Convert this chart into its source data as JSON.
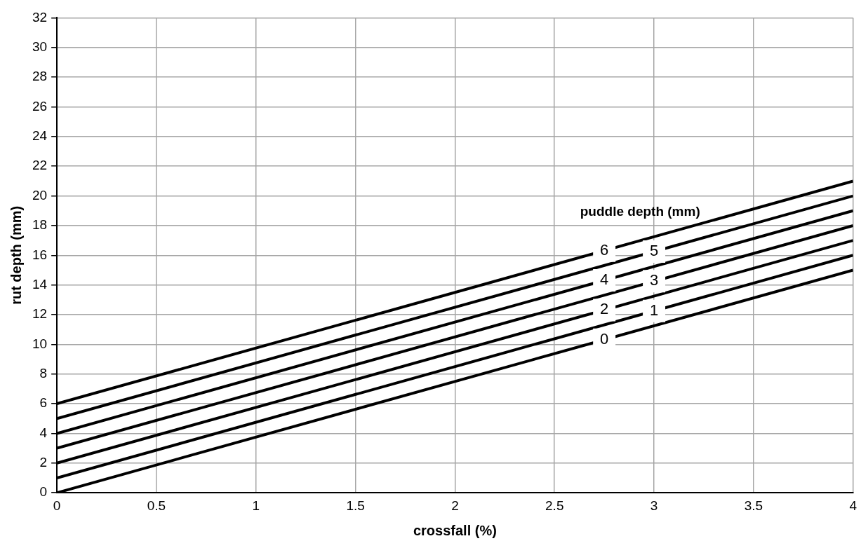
{
  "chart_data": {
    "type": "line",
    "xlabel": "crossfall (%)",
    "ylabel": "rut depth (mm)",
    "legend_title": "puddle depth (mm)",
    "x": [
      0,
      4
    ],
    "series": [
      {
        "name": "0",
        "color": "#000000",
        "values": [
          0,
          15
        ]
      },
      {
        "name": "1",
        "color": "#000000",
        "values": [
          1,
          16
        ]
      },
      {
        "name": "2",
        "color": "#000000",
        "values": [
          2,
          17
        ]
      },
      {
        "name": "3",
        "color": "#000000",
        "values": [
          3,
          18
        ]
      },
      {
        "name": "4",
        "color": "#000000",
        "values": [
          4,
          19
        ]
      },
      {
        "name": "5",
        "color": "#000000",
        "values": [
          5,
          20
        ]
      },
      {
        "name": "6",
        "color": "#000000",
        "values": [
          6,
          21
        ]
      }
    ],
    "xlim": [
      0,
      4
    ],
    "xticks": [
      0,
      0.5,
      1,
      1.5,
      2,
      2.5,
      3,
      3.5,
      4
    ],
    "ylim": [
      0,
      32
    ],
    "yticks": [
      0,
      2,
      4,
      6,
      8,
      10,
      12,
      14,
      16,
      18,
      20,
      22,
      24,
      26,
      28,
      30,
      32
    ],
    "grid": true,
    "legend": false,
    "marker": "none",
    "line_style": "solid"
  }
}
